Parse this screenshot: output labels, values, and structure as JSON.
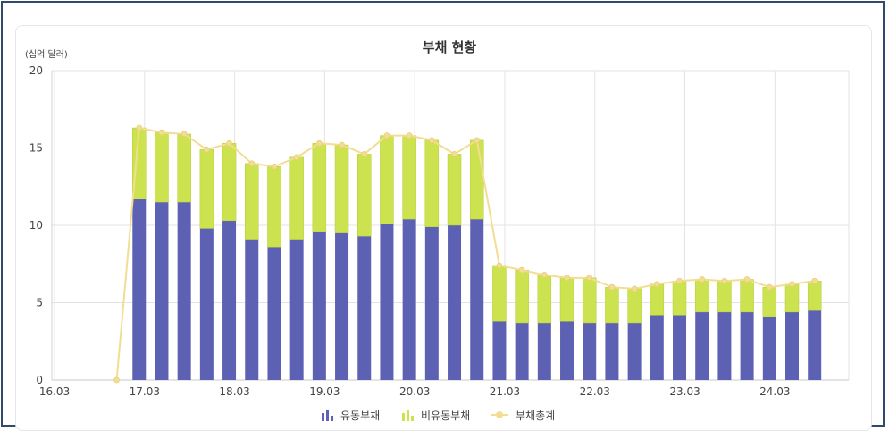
{
  "chart_data": {
    "type": "bar",
    "title": "부채 현황",
    "unit_label": "(십억 달러)",
    "ylim": [
      0,
      20
    ],
    "yticks": [
      "0",
      "5",
      "10",
      "15",
      "20"
    ],
    "xticks": [
      "16.03",
      "17.03",
      "18.03",
      "19.03",
      "20.03",
      "21.03",
      "22.03",
      "23.03",
      "24.03"
    ],
    "stacked": true,
    "grid": true,
    "legend_position": "bottom",
    "colors": {
      "current": "#5c61b3",
      "noncurrent": "#cde24f",
      "total": "#f3dd93"
    },
    "series": [
      {
        "name": "유동부채",
        "values": [
          11.7,
          11.5,
          11.5,
          9.8,
          10.3,
          9.1,
          8.6,
          9.1,
          9.6,
          9.5,
          9.3,
          10.1,
          10.4,
          9.9,
          10.0,
          10.4,
          3.8,
          3.7,
          3.7,
          3.8,
          3.7,
          3.7,
          3.7,
          4.2,
          4.2,
          4.4,
          4.4,
          4.4,
          4.1,
          4.4,
          4.5
        ]
      },
      {
        "name": "비유동부채",
        "values": [
          4.6,
          4.5,
          4.4,
          5.1,
          5.0,
          4.9,
          5.2,
          5.3,
          5.7,
          5.7,
          5.3,
          5.7,
          5.4,
          5.6,
          4.6,
          5.1,
          3.6,
          3.4,
          3.1,
          2.8,
          2.9,
          2.3,
          2.2,
          2.0,
          2.2,
          2.1,
          2.0,
          2.1,
          1.9,
          1.8,
          1.9
        ]
      }
    ],
    "line_series": {
      "name": "부채총계",
      "points": [
        {
          "x": 2016.72,
          "y": 0
        },
        {
          "x": 2016.97,
          "y": 16.3
        },
        {
          "x": 2017.22,
          "y": 16.0
        },
        {
          "x": 2017.47,
          "y": 15.9
        },
        {
          "x": 2017.72,
          "y": 14.9
        },
        {
          "x": 2017.97,
          "y": 15.3
        },
        {
          "x": 2018.22,
          "y": 14.0
        },
        {
          "x": 2018.47,
          "y": 13.8
        },
        {
          "x": 2018.72,
          "y": 14.4
        },
        {
          "x": 2018.97,
          "y": 15.3
        },
        {
          "x": 2019.22,
          "y": 15.2
        },
        {
          "x": 2019.47,
          "y": 14.6
        },
        {
          "x": 2019.72,
          "y": 15.8
        },
        {
          "x": 2019.97,
          "y": 15.8
        },
        {
          "x": 2020.22,
          "y": 15.5
        },
        {
          "x": 2020.47,
          "y": 14.6
        },
        {
          "x": 2020.72,
          "y": 15.5
        },
        {
          "x": 2020.97,
          "y": 7.4
        },
        {
          "x": 2021.22,
          "y": 7.1
        },
        {
          "x": 2021.47,
          "y": 6.8
        },
        {
          "x": 2021.72,
          "y": 6.6
        },
        {
          "x": 2021.97,
          "y": 6.6
        },
        {
          "x": 2022.22,
          "y": 6.0
        },
        {
          "x": 2022.47,
          "y": 5.9
        },
        {
          "x": 2022.72,
          "y": 6.2
        },
        {
          "x": 2022.97,
          "y": 6.4
        },
        {
          "x": 2023.22,
          "y": 6.5
        },
        {
          "x": 2023.47,
          "y": 6.4
        },
        {
          "x": 2023.72,
          "y": 6.5
        },
        {
          "x": 2023.97,
          "y": 6.0
        },
        {
          "x": 2024.22,
          "y": 6.2
        },
        {
          "x": 2024.47,
          "y": 6.4
        }
      ]
    },
    "bar_x": [
      2016.97,
      2017.22,
      2017.47,
      2017.72,
      2017.97,
      2018.22,
      2018.47,
      2018.72,
      2018.97,
      2019.22,
      2019.47,
      2019.72,
      2019.97,
      2020.22,
      2020.47,
      2020.72,
      2020.97,
      2021.22,
      2021.47,
      2021.72,
      2021.97,
      2022.22,
      2022.47,
      2022.72,
      2022.97,
      2023.22,
      2023.47,
      2023.72,
      2023.97,
      2024.22,
      2024.47
    ],
    "xlim": [
      2016,
      2024.85
    ]
  }
}
